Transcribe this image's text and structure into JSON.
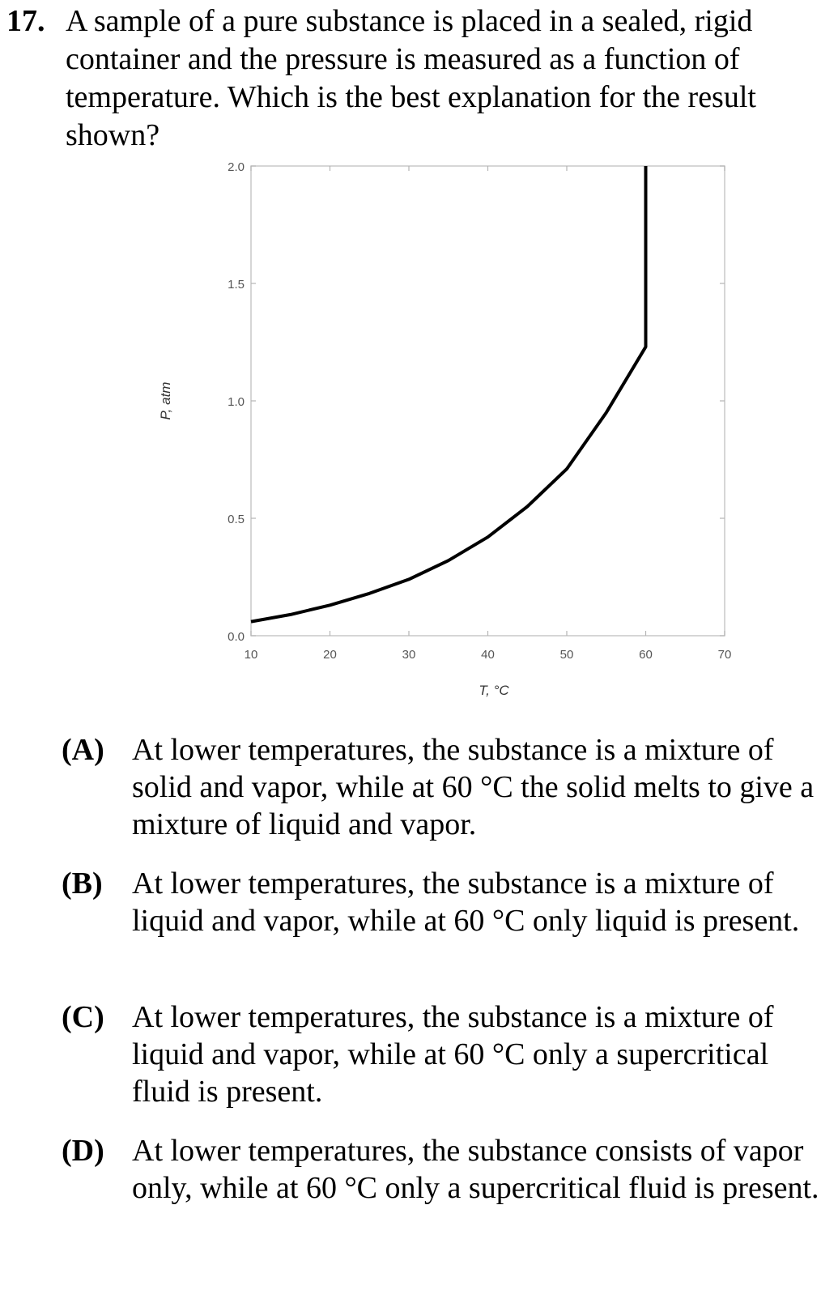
{
  "question": {
    "number": "17.",
    "stem": "A sample of a pure substance is placed in a sealed, rigid container and the pressure is measured as a function of temperature.  Which is the best explanation for the result shown?"
  },
  "chart_data": {
    "type": "line",
    "xlabel": "T, °C",
    "ylabel": "P, atm",
    "xlim": [
      10,
      70
    ],
    "ylim": [
      0,
      2.0
    ],
    "x_ticks": [
      "10",
      "20",
      "30",
      "40",
      "50",
      "60",
      "70"
    ],
    "y_ticks": [
      "0.0",
      "0.5",
      "1.0",
      "1.5",
      "2.0"
    ],
    "grid": false,
    "series": [
      {
        "x": [
          10,
          15,
          20,
          25,
          30,
          35,
          40,
          45,
          50,
          55,
          60,
          60
        ],
        "y": [
          0.06,
          0.09,
          0.13,
          0.18,
          0.24,
          0.32,
          0.42,
          0.55,
          0.71,
          0.95,
          1.23,
          2.0
        ]
      }
    ]
  },
  "options": [
    {
      "label": "(A)",
      "text": "At lower temperatures, the substance is a mixture of solid and vapor, while at 60 °C the solid melts to give a mixture of liquid and vapor."
    },
    {
      "label": "(B)",
      "text": "At lower temperatures, the substance is a mixture of liquid and vapor, while at 60 °C only liquid is present."
    },
    {
      "label": "(C)",
      "text": "At lower temperatures, the substance is a mixture of liquid and vapor, while at 60 °C only a supercritical fluid is present."
    },
    {
      "label": "(D)",
      "text": "At lower temperatures, the substance consists of vapor only, while at 60 °C only a supercritical fluid is present."
    }
  ]
}
